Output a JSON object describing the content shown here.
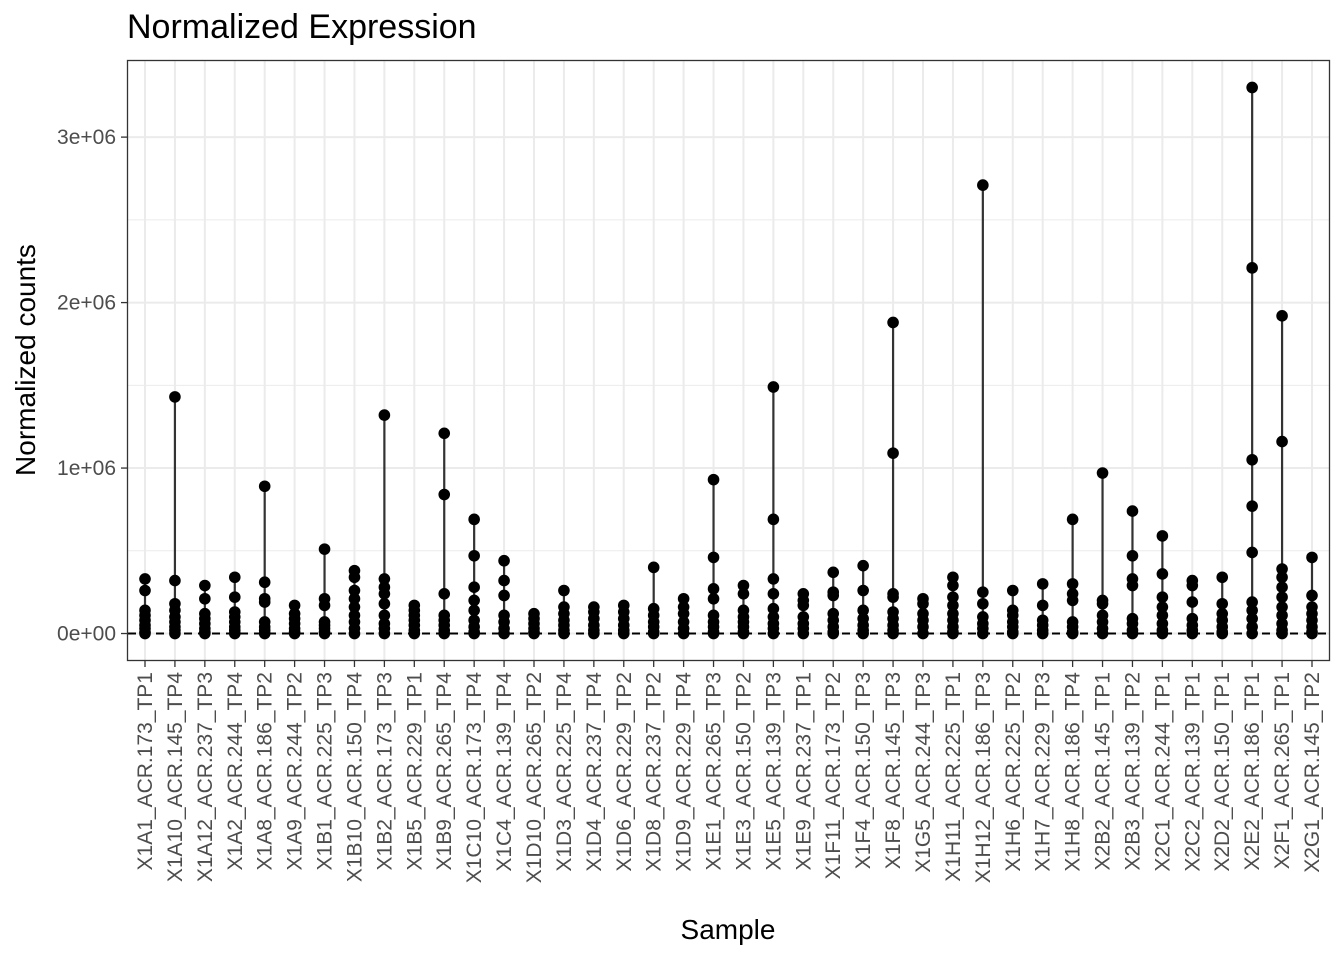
{
  "chart_data": {
    "type": "scatter",
    "title": "Normalized Expression",
    "xlabel": "Sample",
    "ylabel": "Normalized counts",
    "ylim": [
      -160000,
      3460000
    ],
    "yticks": [
      0,
      1000000,
      2000000,
      3000000
    ],
    "ytick_labels": [
      "0e+00",
      "1e+06",
      "2e+06",
      "3e+06"
    ],
    "grid": true,
    "reference_line": {
      "y": 0,
      "style": "dashed"
    },
    "categories": [
      "X1A1_ACR.173_TP1",
      "X1A10_ACR.145_TP4",
      "X1A12_ACR.237_TP3",
      "X1A2_ACR.244_TP4",
      "X1A8_ACR.186_TP2",
      "X1A9_ACR.244_TP2",
      "X1B1_ACR.225_TP3",
      "X1B10_ACR.150_TP4",
      "X1B2_ACR.173_TP3",
      "X1B5_ACR.229_TP1",
      "X1B9_ACR.265_TP4",
      "X1C10_ACR.173_TP4",
      "X1C4_ACR.139_TP4",
      "X1D10_ACR.265_TP2",
      "X1D3_ACR.225_TP4",
      "X1D4_ACR.237_TP4",
      "X1D6_ACR.229_TP2",
      "X1D8_ACR.237_TP2",
      "X1D9_ACR.229_TP4",
      "X1E1_ACR.265_TP3",
      "X1E3_ACR.150_TP2",
      "X1E5_ACR.139_TP3",
      "X1E9_ACR.237_TP1",
      "X1F11_ACR.173_TP2",
      "X1F4_ACR.150_TP3",
      "X1F8_ACR.145_TP3",
      "X1G5_ACR.244_TP3",
      "X1H11_ACR.225_TP1",
      "X1H12_ACR.186_TP3",
      "X1H6_ACR.225_TP2",
      "X1H7_ACR.229_TP3",
      "X1H8_ACR.186_TP4",
      "X2B2_ACR.145_TP1",
      "X2B3_ACR.139_TP2",
      "X2C1_ACR.244_TP1",
      "X2C2_ACR.139_TP1",
      "X2D2_ACR.150_TP1",
      "X2E2_ACR.186_TP1",
      "X2F1_ACR.265_TP1",
      "X2G1_ACR.145_TP2"
    ],
    "values": [
      [
        330000,
        260000,
        140000,
        110000,
        80000,
        50000,
        30000,
        10000,
        0
      ],
      [
        1430000,
        320000,
        180000,
        140000,
        100000,
        70000,
        40000,
        20000,
        0
      ],
      [
        290000,
        210000,
        120000,
        90000,
        60000,
        30000,
        10000,
        0
      ],
      [
        340000,
        220000,
        130000,
        100000,
        70000,
        40000,
        20000,
        0
      ],
      [
        890000,
        310000,
        210000,
        190000,
        70000,
        40000,
        20000,
        0
      ],
      [
        170000,
        120000,
        90000,
        60000,
        30000,
        10000,
        0
      ],
      [
        510000,
        210000,
        170000,
        70000,
        50000,
        30000,
        10000,
        0
      ],
      [
        380000,
        340000,
        260000,
        210000,
        160000,
        110000,
        70000,
        30000,
        0
      ],
      [
        1320000,
        330000,
        280000,
        240000,
        180000,
        110000,
        60000,
        30000,
        0
      ],
      [
        170000,
        140000,
        110000,
        80000,
        50000,
        20000,
        0
      ],
      [
        1210000,
        840000,
        240000,
        110000,
        80000,
        50000,
        20000,
        0
      ],
      [
        690000,
        470000,
        280000,
        200000,
        140000,
        80000,
        40000,
        10000,
        0
      ],
      [
        440000,
        320000,
        230000,
        110000,
        70000,
        30000,
        0
      ],
      [
        120000,
        90000,
        60000,
        30000,
        10000,
        0
      ],
      [
        260000,
        160000,
        120000,
        80000,
        50000,
        20000,
        0
      ],
      [
        160000,
        130000,
        90000,
        50000,
        20000,
        0
      ],
      [
        170000,
        130000,
        90000,
        50000,
        20000,
        0
      ],
      [
        400000,
        150000,
        110000,
        70000,
        40000,
        10000,
        0
      ],
      [
        210000,
        160000,
        120000,
        70000,
        30000,
        0
      ],
      [
        930000,
        460000,
        270000,
        210000,
        110000,
        70000,
        40000,
        10000,
        0
      ],
      [
        290000,
        240000,
        140000,
        100000,
        70000,
        40000,
        10000,
        0
      ],
      [
        1490000,
        690000,
        330000,
        240000,
        150000,
        100000,
        60000,
        30000,
        0
      ],
      [
        240000,
        200000,
        170000,
        100000,
        60000,
        30000,
        0
      ],
      [
        370000,
        250000,
        230000,
        120000,
        80000,
        40000,
        10000,
        0
      ],
      [
        410000,
        260000,
        140000,
        90000,
        50000,
        20000,
        0
      ],
      [
        1880000,
        1090000,
        240000,
        220000,
        130000,
        90000,
        50000,
        20000,
        0
      ],
      [
        210000,
        180000,
        120000,
        80000,
        40000,
        0
      ],
      [
        340000,
        290000,
        220000,
        170000,
        120000,
        80000,
        40000,
        10000,
        0
      ],
      [
        2710000,
        250000,
        180000,
        100000,
        60000,
        30000,
        0
      ],
      [
        260000,
        140000,
        110000,
        70000,
        40000,
        10000,
        0
      ],
      [
        300000,
        170000,
        80000,
        50000,
        20000,
        0
      ],
      [
        690000,
        300000,
        240000,
        200000,
        70000,
        40000,
        10000,
        0
      ],
      [
        970000,
        200000,
        180000,
        110000,
        70000,
        30000,
        0
      ],
      [
        740000,
        470000,
        330000,
        290000,
        90000,
        60000,
        20000,
        0
      ],
      [
        590000,
        360000,
        220000,
        160000,
        110000,
        60000,
        20000,
        0
      ],
      [
        320000,
        290000,
        190000,
        90000,
        50000,
        20000,
        0
      ],
      [
        340000,
        180000,
        120000,
        80000,
        40000,
        10000,
        0
      ],
      [
        3300000,
        2210000,
        1050000,
        770000,
        490000,
        190000,
        140000,
        90000,
        40000,
        0
      ],
      [
        1920000,
        1160000,
        390000,
        340000,
        280000,
        220000,
        160000,
        110000,
        60000,
        20000,
        0
      ],
      [
        460000,
        230000,
        160000,
        120000,
        80000,
        40000,
        10000,
        0
      ]
    ],
    "colors": {
      "point": "#000000",
      "line": "#333333",
      "grid": "#ebebeb",
      "panel_border": "#333333",
      "tick_text": "#4d4d4d"
    }
  }
}
